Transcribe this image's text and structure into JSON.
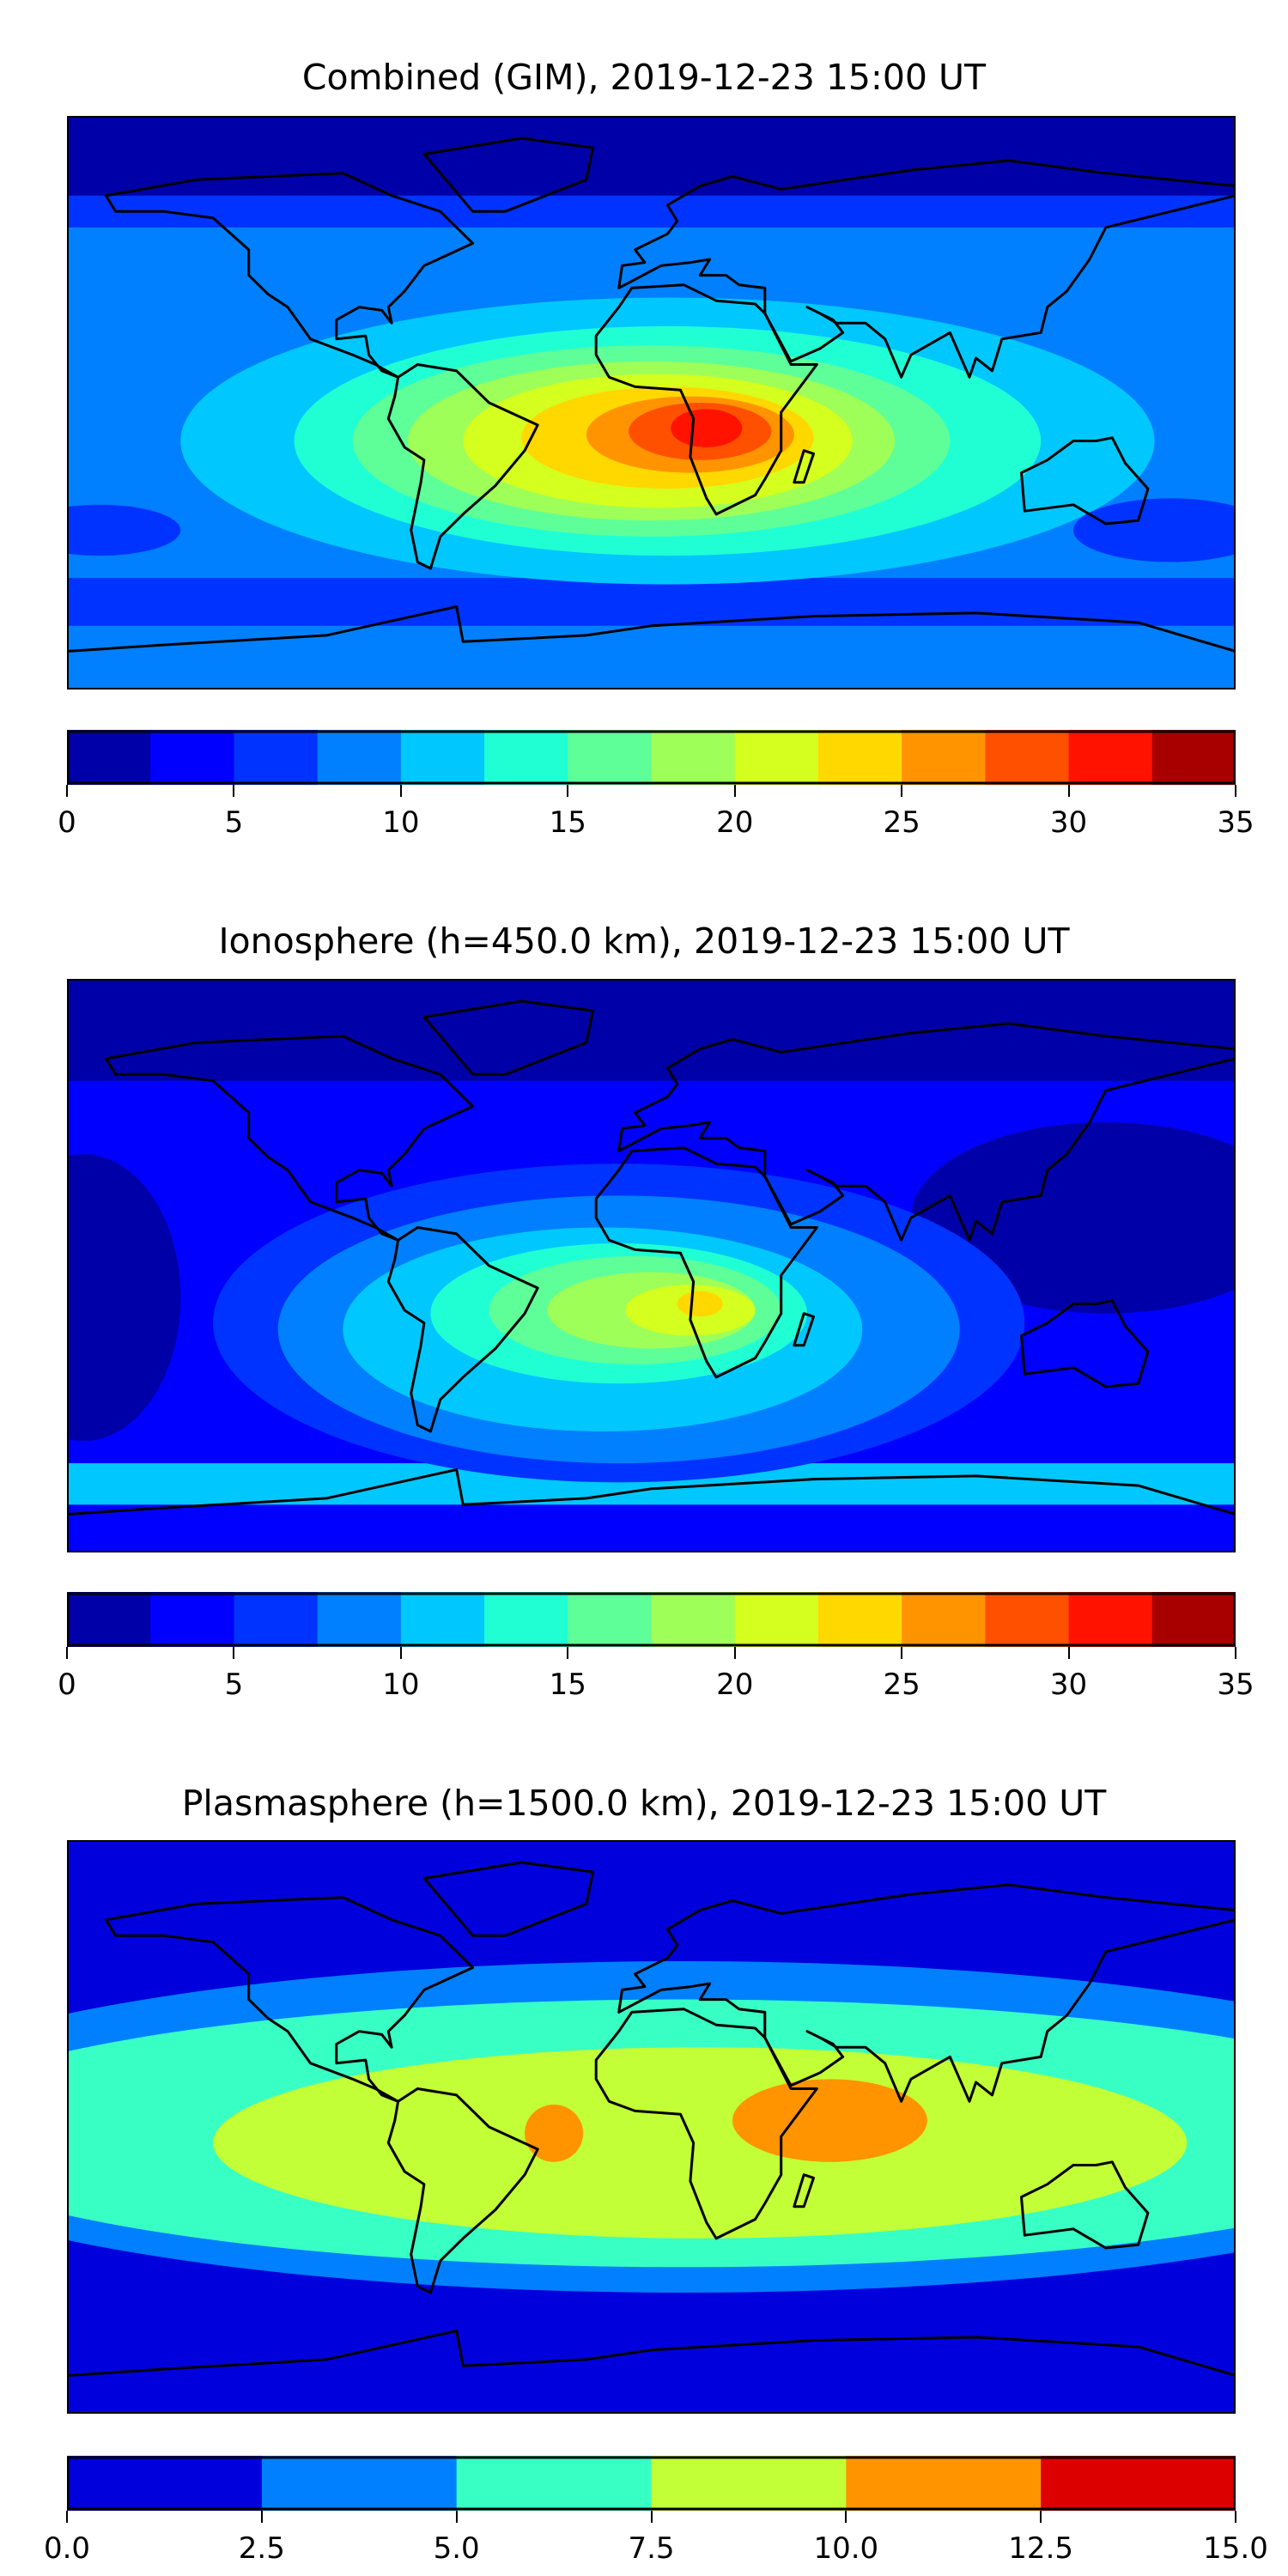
{
  "panels": [
    {
      "title": "Combined (GIM), 2019-12-23 15:00 UT",
      "colorbar": {
        "levels": [
          0,
          2.5,
          5,
          7.5,
          10,
          12.5,
          15,
          17.5,
          20,
          22.5,
          25,
          27.5,
          30,
          32.5,
          35
        ],
        "colors": [
          "#0000a8",
          "#0000ff",
          "#0033ff",
          "#0080ff",
          "#00c8ff",
          "#20ffd4",
          "#5eff98",
          "#9eff58",
          "#d4ff1f",
          "#ffd800",
          "#ff9400",
          "#ff5000",
          "#ff1300",
          "#a80000"
        ],
        "tick_labels": [
          "0",
          "5",
          "10",
          "15",
          "20",
          "25",
          "30",
          "35"
        ]
      }
    },
    {
      "title": "Ionosphere  (h=450.0 km), 2019-12-23 15:00 UT",
      "colorbar": {
        "levels": [
          0,
          2.5,
          5,
          7.5,
          10,
          12.5,
          15,
          17.5,
          20,
          22.5,
          25,
          27.5,
          30,
          32.5,
          35
        ],
        "colors": [
          "#0000a8",
          "#0000ff",
          "#0033ff",
          "#0080ff",
          "#00c8ff",
          "#20ffd4",
          "#5eff98",
          "#9eff58",
          "#d4ff1f",
          "#ffd800",
          "#ff9400",
          "#ff5000",
          "#ff1300",
          "#a80000"
        ],
        "tick_labels": [
          "0",
          "5",
          "10",
          "15",
          "20",
          "25",
          "30",
          "35"
        ]
      }
    },
    {
      "title": "Plasmasphere (h=1500.0 km), 2019-12-23 15:00 UT",
      "colorbar": {
        "levels": [
          0,
          2.5,
          5,
          7.5,
          10,
          12.5,
          15
        ],
        "colors": [
          "#0000dd",
          "#0080ff",
          "#38ffc4",
          "#c2ff36",
          "#ff9400",
          "#dd0000"
        ],
        "tick_labels": [
          "0.0",
          "2.5",
          "5.0",
          "7.5",
          "10.0",
          "12.5",
          "15.0"
        ]
      }
    }
  ],
  "chart_data": [
    {
      "type": "heatmap",
      "title": "Combined (GIM), 2019-12-23 15:00 UT",
      "projection": "global lon -180..180, lat -90..90",
      "colorbar_range": [
        0,
        35
      ],
      "peak_region": "central Africa / South Atlantic, ~30-32.5",
      "minimum_region": "high latitudes, 0-2.5"
    },
    {
      "type": "heatmap",
      "title": "Ionosphere  (h=450.0 km), 2019-12-23 15:00 UT",
      "projection": "global lon -180..180, lat -90..90",
      "colorbar_range": [
        0,
        35
      ],
      "peak_region": "southern Africa, ~22.5-25",
      "minimum_region": "high latitudes and east Asia/Pacific, 0-2.5"
    },
    {
      "type": "heatmap",
      "title": "Plasmasphere (h=1500.0 km), 2019-12-23 15:00 UT",
      "projection": "global lon -180..180, lat -90..90",
      "colorbar_range": [
        0,
        15
      ],
      "peak_region": "Arabian Sea / Indian Ocean and Gulf of Guinea, 10-12.5",
      "minimum_region": "poles, 0-2.5"
    }
  ]
}
